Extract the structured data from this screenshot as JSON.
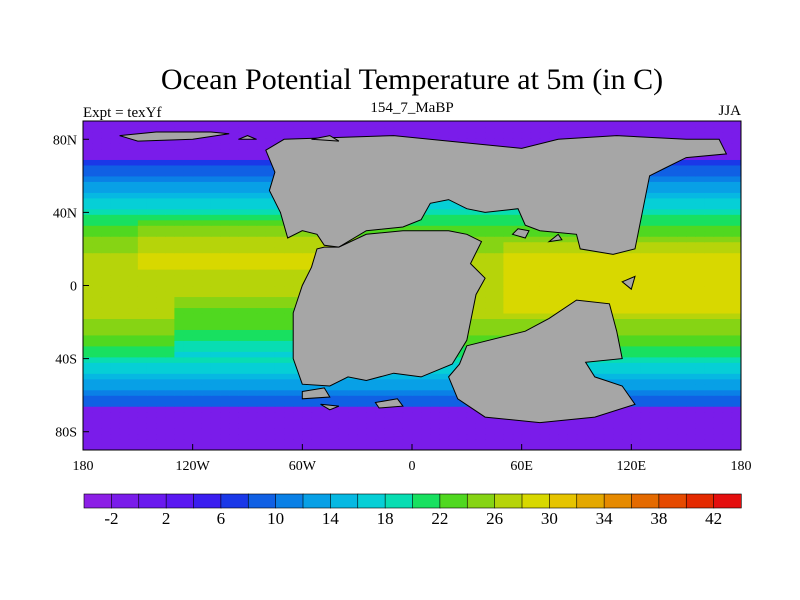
{
  "chart_data": {
    "type": "heatmap",
    "title": "Ocean Potential Temperature at 5m (in C)",
    "left_label": "Expt = texYf",
    "center_label": "154_7_MaBP",
    "right_label": "JJA",
    "projection": "cylindrical equidistant",
    "lon_range": [
      -180,
      180
    ],
    "lat_range": [
      -90,
      90
    ],
    "x_ticks": [
      "180",
      "120W",
      "60W",
      "0",
      "60E",
      "120E",
      "180"
    ],
    "y_ticks": [
      "80N",
      "40N",
      "0",
      "40S",
      "80S"
    ],
    "land_color": "#a6a6a6",
    "colorbar": {
      "levels": [
        -4,
        -2,
        0,
        2,
        4,
        6,
        8,
        10,
        12,
        14,
        16,
        18,
        20,
        22,
        24,
        26,
        28,
        30,
        32,
        34,
        36,
        38,
        40,
        42,
        44
      ],
      "labels": [
        "-2",
        "2",
        "6",
        "10",
        "14",
        "18",
        "22",
        "26",
        "30",
        "34",
        "38",
        "42"
      ],
      "colors": [
        "#8c1fe6",
        "#7a1cea",
        "#6a1aef",
        "#5a18f2",
        "#3a1ef0",
        "#1a38e8",
        "#1060e4",
        "#0a80e6",
        "#08a0e6",
        "#06b8e2",
        "#06cfd6",
        "#08ddb2",
        "#18e060",
        "#50d820",
        "#86d414",
        "#b6d40a",
        "#d8d800",
        "#e6c400",
        "#e4a800",
        "#e68a00",
        "#e46a00",
        "#e64a00",
        "#e42a00",
        "#e40e0e"
      ]
    }
  }
}
